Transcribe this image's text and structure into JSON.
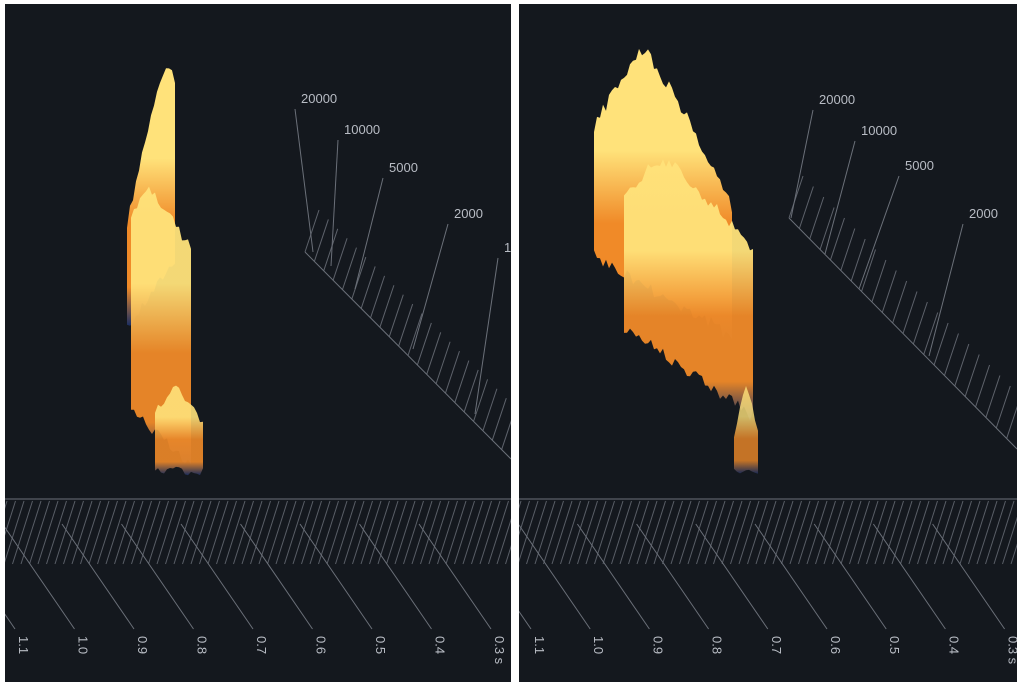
{
  "chart_data": [
    {
      "type": "waterfall-3d",
      "title": "",
      "time_axis": {
        "unit": "s",
        "ticks": [
          "1.1",
          "1.0",
          "0.9",
          "0.8",
          "0.7",
          "0.6",
          "0.5",
          "0.4",
          "0.3 s"
        ]
      },
      "frequency_axis": {
        "ticks": [
          "20000",
          "10000",
          "5000",
          "2000",
          "1"
        ]
      },
      "colors": {
        "low": "#1a2e63",
        "mid": "#f08a28",
        "high": "#ffe27a",
        "background": "#14181e",
        "grid": "#6b7079"
      }
    },
    {
      "type": "waterfall-3d",
      "title": "",
      "time_axis": {
        "unit": "s",
        "ticks": [
          "1.1",
          "1.0",
          "0.9",
          "0.8",
          "0.7",
          "0.6",
          "0.5",
          "0.4",
          "0.3 s"
        ]
      },
      "frequency_axis": {
        "ticks": [
          "20000",
          "10000",
          "5000",
          "2000"
        ]
      },
      "colors": {
        "low": "#1a2e63",
        "mid": "#f08a28",
        "high": "#ffe27a",
        "background": "#14181e",
        "grid": "#6b7079"
      }
    }
  ]
}
